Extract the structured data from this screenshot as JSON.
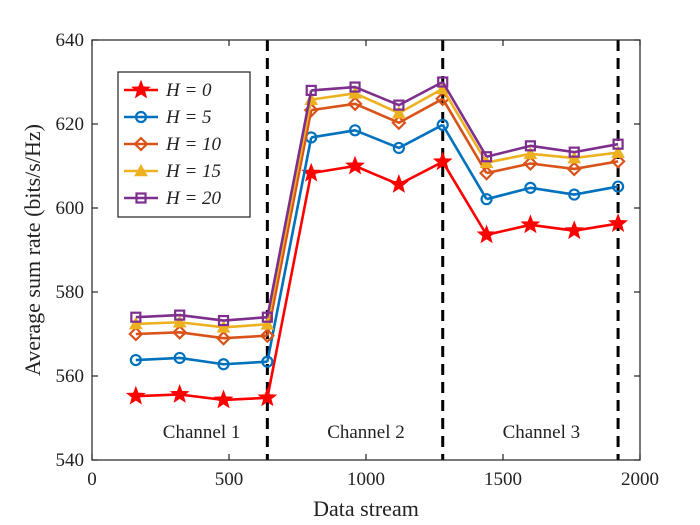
{
  "chart_data": {
    "type": "line",
    "title": "",
    "xlabel": "Data stream",
    "ylabel": "Average sum rate (bits/s/Hz)",
    "xlim": [
      0,
      2000
    ],
    "ylim": [
      540,
      640
    ],
    "xticks": [
      0,
      500,
      1000,
      1500,
      2000
    ],
    "yticks": [
      540,
      560,
      580,
      600,
      620,
      640
    ],
    "grid": false,
    "legend_position": "top-left",
    "x": [
      160,
      320,
      480,
      640,
      800,
      960,
      1120,
      1280,
      1440,
      1600,
      1760,
      1920
    ],
    "segments": [
      [
        0,
        3
      ],
      [
        4,
        7
      ],
      [
        8,
        11
      ]
    ],
    "dividers": [
      640,
      1280,
      1920
    ],
    "annotations": [
      {
        "text": "Channel 1",
        "x": 400,
        "y": 545
      },
      {
        "text": "Channel 2",
        "x": 1000,
        "y": 545
      },
      {
        "text": "Channel 3",
        "x": 1640,
        "y": 545
      }
    ],
    "series": [
      {
        "name": "H = 0",
        "color": "#ff0000",
        "marker": "star",
        "values": [
          555.2,
          555.6,
          554.3,
          554.8,
          608.3,
          610.0,
          605.6,
          611.0,
          593.6,
          596.0,
          594.6,
          596.3
        ]
      },
      {
        "name": "H = 5",
        "color": "#0072bd",
        "marker": "circle",
        "values": [
          563.8,
          564.3,
          562.8,
          563.4,
          616.8,
          618.5,
          614.3,
          619.8,
          602.1,
          604.8,
          603.2,
          605.1
        ]
      },
      {
        "name": "H = 10",
        "color": "#d95319",
        "marker": "diamond",
        "values": [
          570.0,
          570.4,
          569.0,
          569.6,
          623.3,
          624.8,
          620.3,
          626.0,
          608.3,
          610.6,
          609.3,
          611.1
        ]
      },
      {
        "name": "H = 15",
        "color": "#edb120",
        "marker": "triangle",
        "values": [
          572.4,
          572.8,
          571.6,
          572.3,
          625.8,
          627.3,
          622.6,
          628.4,
          610.8,
          612.9,
          611.9,
          613.2
        ]
      },
      {
        "name": "H = 20",
        "color": "#7e2f8e",
        "marker": "square",
        "values": [
          574.0,
          574.5,
          573.2,
          574.0,
          628.0,
          628.8,
          624.5,
          630.0,
          612.2,
          614.8,
          613.3,
          615.2
        ]
      }
    ]
  }
}
